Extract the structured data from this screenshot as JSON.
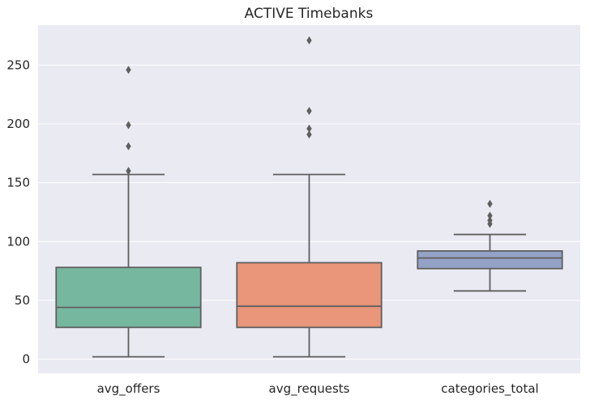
{
  "chart_data": {
    "type": "box",
    "title": "ACTIVE Timebanks",
    "xlabel": "",
    "ylabel": "",
    "ylim": [
      -12,
      284
    ],
    "yticks": [
      0,
      50,
      100,
      150,
      200,
      250
    ],
    "grid": true,
    "categories": [
      "avg_offers",
      "avg_requests",
      "categories_total"
    ],
    "boxes": [
      {
        "category": "avg_offers",
        "color": "#76b7a0",
        "whisker_low": 2,
        "q1": 27,
        "median": 44,
        "q3": 78,
        "whisker_high": 157,
        "outliers": [
          160,
          181,
          199,
          246
        ]
      },
      {
        "category": "avg_requests",
        "color": "#e9967a",
        "whisker_low": 2,
        "q1": 27,
        "median": 45,
        "q3": 82,
        "whisker_high": 157,
        "outliers": [
          191,
          196,
          211,
          271
        ]
      },
      {
        "category": "categories_total",
        "color": "#94a2c6",
        "whisker_low": 58,
        "q1": 77,
        "median": 86,
        "q3": 92,
        "whisker_high": 106,
        "outliers": [
          115,
          118,
          122,
          132
        ]
      }
    ]
  },
  "colors": {
    "background": "#eaeaf2",
    "grid": "#ffffff",
    "line": "#5f5f5f",
    "text": "#262626"
  }
}
